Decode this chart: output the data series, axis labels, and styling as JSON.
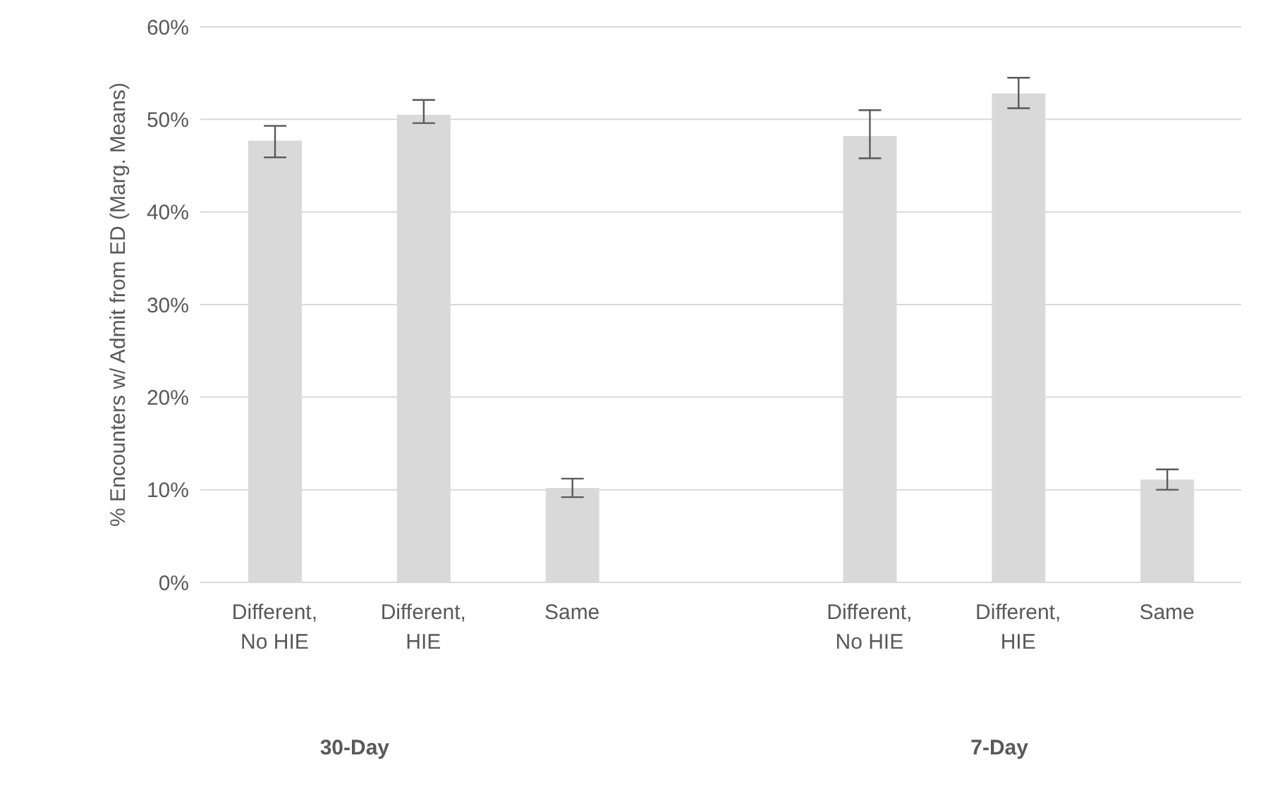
{
  "chart_data": {
    "type": "bar",
    "ylabel": "% Encounters w/ Admit from ED (Marg. Means)",
    "categories": [
      "Different, No HIE",
      "Different, HIE",
      "Same",
      null,
      "Different, No HIE",
      "Different, HIE",
      "Same"
    ],
    "values": [
      47.7,
      50.5,
      10.2,
      null,
      48.2,
      52.8,
      11.1
    ],
    "errors": [
      [
        45.9,
        49.3
      ],
      [
        49.6,
        52.1
      ],
      [
        9.2,
        11.2
      ],
      null,
      [
        45.8,
        51.0
      ],
      [
        51.2,
        54.5
      ],
      [
        10.0,
        12.2
      ]
    ],
    "color": "#d9d9d9",
    "ylim": [
      0,
      60
    ],
    "yticks": [
      {
        "value": 0,
        "label": "0%"
      },
      {
        "value": 10,
        "label": "10%"
      },
      {
        "value": 20,
        "label": "20%"
      },
      {
        "value": 30,
        "label": "30%"
      },
      {
        "value": 40,
        "label": "40%"
      },
      {
        "value": 50,
        "label": "50%"
      },
      {
        "value": 60,
        "label": "60%"
      }
    ],
    "grid": "y",
    "legend": false,
    "annotations": [
      "30-Day",
      "7-Day"
    ]
  }
}
